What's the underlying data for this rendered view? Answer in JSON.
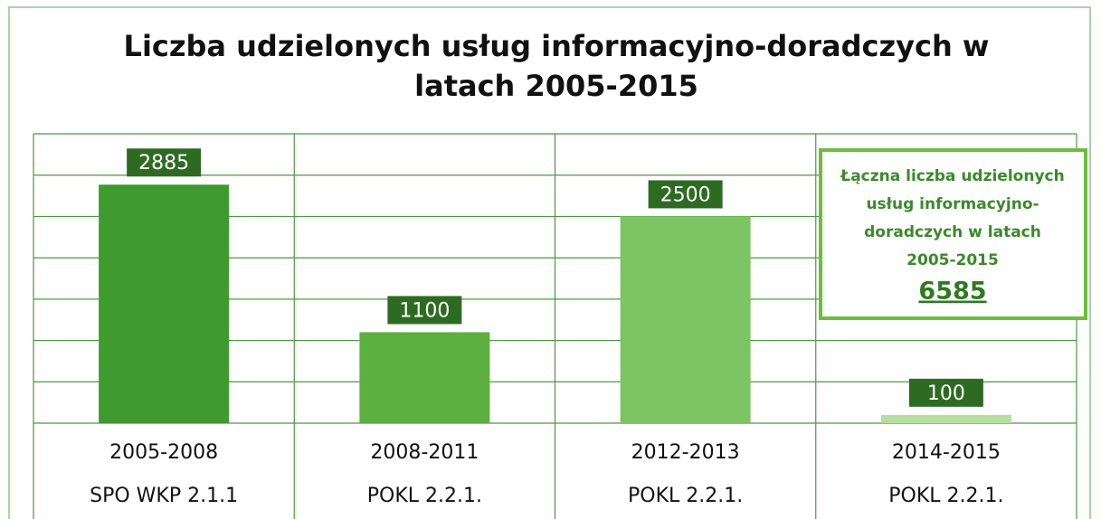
{
  "chart_data": {
    "type": "bar",
    "title": [
      "Liczba udzielonych usług informacyjno-doradczych w",
      "latach 2005-2015"
    ],
    "categories": [
      "2005-2008",
      "2008-2011",
      "2012-2013",
      "2014-2015"
    ],
    "programs": [
      "SPO WKP 2.1.1",
      "POKL 2.2.1.",
      "POKL 2.2.1.",
      "POKL 2.2.1."
    ],
    "values": [
      2885,
      1100,
      2500,
      100
    ],
    "colors": [
      "#3f9a2f",
      "#5cb040",
      "#7dc464",
      "#b6dea0"
    ],
    "label_color": "#2e6b22",
    "ylim": [
      0,
      3500
    ],
    "yticks": [
      0,
      500,
      1000,
      1500,
      2000,
      2500,
      3000,
      3500
    ],
    "grid": true,
    "annotation": {
      "lines": [
        "Łączna liczba udzielonych",
        "usług informacyjno-",
        "doradczych w latach",
        "2005-2015"
      ],
      "total": "6585"
    }
  }
}
